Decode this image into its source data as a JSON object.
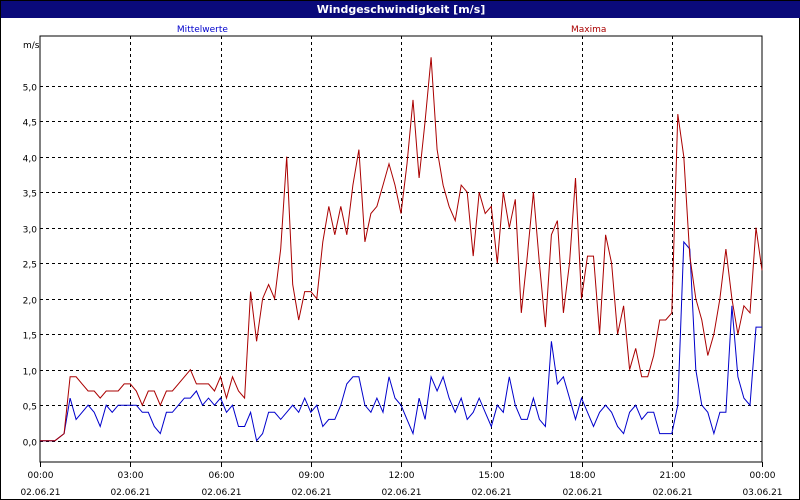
{
  "window": {
    "title": "Windgeschwindigkeit [m/s]"
  },
  "chart_data": {
    "type": "line",
    "title": "Windgeschwindigkeit [m/s]",
    "ylabel": "m/s",
    "ylim": [
      -0.3,
      5.7
    ],
    "yticks": [
      "0,0",
      "0,5",
      "1,0",
      "1,5",
      "2,0",
      "2,5",
      "3,0",
      "3,5",
      "4,0",
      "4,5",
      "5,0"
    ],
    "ytick_values": [
      0,
      0.5,
      1,
      1.5,
      2,
      2.5,
      3,
      3.5,
      4,
      4.5,
      5
    ],
    "xlim": [
      0,
      24
    ],
    "xticks": [
      {
        "h": 0,
        "time": "00:00",
        "date": "02.06.21"
      },
      {
        "h": 3,
        "time": "03:00",
        "date": "02.06.21"
      },
      {
        "h": 6,
        "time": "06:00",
        "date": "02.06.21"
      },
      {
        "h": 9,
        "time": "09:00",
        "date": "02.06.21"
      },
      {
        "h": 12,
        "time": "12:00",
        "date": "02.06.21"
      },
      {
        "h": 15,
        "time": "15:00",
        "date": "02.06.21"
      },
      {
        "h": 18,
        "time": "18:00",
        "date": "02.06.21"
      },
      {
        "h": 21,
        "time": "21:00",
        "date": "02.06.21"
      },
      {
        "h": 24,
        "time": "00:00",
        "date": "03.06.21"
      }
    ],
    "grid": true,
    "series": [
      {
        "name": "Mittelwerte",
        "color": "#0000cc",
        "label_position": "left",
        "x": [
          0,
          0.5,
          0.8,
          1.0,
          1.2,
          1.4,
          1.6,
          1.8,
          2.0,
          2.2,
          2.4,
          2.6,
          2.8,
          3.0,
          3.2,
          3.4,
          3.6,
          3.8,
          4.0,
          4.2,
          4.4,
          4.6,
          4.8,
          5.0,
          5.2,
          5.4,
          5.6,
          5.8,
          6.0,
          6.2,
          6.4,
          6.6,
          6.8,
          7.0,
          7.2,
          7.4,
          7.6,
          7.8,
          8.0,
          8.2,
          8.4,
          8.6,
          8.8,
          9.0,
          9.2,
          9.4,
          9.6,
          9.8,
          10.0,
          10.2,
          10.4,
          10.6,
          10.8,
          11.0,
          11.2,
          11.4,
          11.6,
          11.8,
          12.0,
          12.2,
          12.4,
          12.6,
          12.8,
          13.0,
          13.2,
          13.4,
          13.6,
          13.8,
          14.0,
          14.2,
          14.4,
          14.6,
          14.8,
          15.0,
          15.2,
          15.4,
          15.6,
          15.8,
          16.0,
          16.2,
          16.4,
          16.6,
          16.8,
          17.0,
          17.2,
          17.4,
          17.6,
          17.8,
          18.0,
          18.2,
          18.4,
          18.6,
          18.8,
          19.0,
          19.2,
          19.4,
          19.6,
          19.8,
          20.0,
          20.2,
          20.4,
          20.6,
          20.8,
          21.0,
          21.2,
          21.4,
          21.6,
          21.8,
          22.0,
          22.2,
          22.4,
          22.6,
          22.8,
          23.0,
          23.2,
          23.4,
          23.6,
          23.8,
          24.0
        ],
        "y": [
          0,
          0,
          0.1,
          0.6,
          0.3,
          0.4,
          0.5,
          0.4,
          0.2,
          0.5,
          0.4,
          0.5,
          0.5,
          0.5,
          0.5,
          0.4,
          0.4,
          0.2,
          0.1,
          0.4,
          0.4,
          0.5,
          0.6,
          0.6,
          0.7,
          0.5,
          0.6,
          0.5,
          0.6,
          0.4,
          0.5,
          0.2,
          0.2,
          0.4,
          0,
          0.1,
          0.4,
          0.4,
          0.3,
          0.4,
          0.5,
          0.4,
          0.6,
          0.4,
          0.5,
          0.2,
          0.3,
          0.3,
          0.5,
          0.8,
          0.9,
          0.9,
          0.5,
          0.4,
          0.6,
          0.4,
          0.9,
          0.6,
          0.5,
          0.3,
          0.1,
          0.6,
          0.3,
          0.9,
          0.7,
          0.9,
          0.6,
          0.4,
          0.6,
          0.3,
          0.4,
          0.6,
          0.4,
          0.2,
          0.5,
          0.4,
          0.9,
          0.5,
          0.3,
          0.3,
          0.6,
          0.3,
          0.2,
          1.4,
          0.8,
          0.9,
          0.6,
          0.3,
          0.6,
          0.4,
          0.2,
          0.4,
          0.5,
          0.4,
          0.2,
          0.1,
          0.4,
          0.5,
          0.3,
          0.4,
          0.4,
          0.1,
          0.1,
          0.1,
          0.5,
          2.8,
          2.7,
          1.0,
          0.5,
          0.4,
          0.1,
          0.4,
          0.4,
          1.9,
          0.9,
          0.6,
          0.5,
          1.6,
          1.6
        ]
      },
      {
        "name": "Maxima",
        "color": "#aa0000",
        "label_position": "right",
        "x": [
          0,
          0.5,
          0.8,
          1.0,
          1.2,
          1.4,
          1.6,
          1.8,
          2.0,
          2.2,
          2.4,
          2.6,
          2.8,
          3.0,
          3.2,
          3.4,
          3.6,
          3.8,
          4.0,
          4.2,
          4.4,
          4.6,
          4.8,
          5.0,
          5.2,
          5.4,
          5.6,
          5.8,
          6.0,
          6.2,
          6.4,
          6.6,
          6.8,
          7.0,
          7.2,
          7.4,
          7.6,
          7.8,
          8.0,
          8.2,
          8.4,
          8.6,
          8.8,
          9.0,
          9.2,
          9.4,
          9.6,
          9.8,
          10.0,
          10.2,
          10.4,
          10.6,
          10.8,
          11.0,
          11.2,
          11.4,
          11.6,
          11.8,
          12.0,
          12.2,
          12.4,
          12.6,
          12.8,
          13.0,
          13.2,
          13.4,
          13.6,
          13.8,
          14.0,
          14.2,
          14.4,
          14.6,
          14.8,
          15.0,
          15.2,
          15.4,
          15.6,
          15.8,
          16.0,
          16.2,
          16.4,
          16.6,
          16.8,
          17.0,
          17.2,
          17.4,
          17.6,
          17.8,
          18.0,
          18.2,
          18.4,
          18.6,
          18.8,
          19.0,
          19.2,
          19.4,
          19.6,
          19.8,
          20.0,
          20.2,
          20.4,
          20.6,
          20.8,
          21.0,
          21.2,
          21.4,
          21.6,
          21.8,
          22.0,
          22.2,
          22.4,
          22.6,
          22.8,
          23.0,
          23.2,
          23.4,
          23.6,
          23.8,
          24.0
        ],
        "y": [
          0,
          0,
          0.1,
          0.9,
          0.9,
          0.8,
          0.7,
          0.7,
          0.6,
          0.7,
          0.7,
          0.7,
          0.8,
          0.8,
          0.7,
          0.5,
          0.7,
          0.7,
          0.5,
          0.7,
          0.7,
          0.8,
          0.9,
          1.0,
          0.8,
          0.8,
          0.8,
          0.7,
          0.9,
          0.6,
          0.9,
          0.7,
          0.6,
          2.1,
          1.4,
          2.0,
          2.2,
          2.0,
          2.7,
          4.0,
          2.2,
          1.7,
          2.1,
          2.1,
          2.0,
          2.8,
          3.3,
          2.9,
          3.3,
          2.9,
          3.6,
          4.1,
          2.8,
          3.2,
          3.3,
          3.6,
          3.9,
          3.6,
          3.2,
          3.9,
          4.8,
          3.7,
          4.5,
          5.4,
          4.1,
          3.6,
          3.3,
          3.1,
          3.6,
          3.5,
          2.6,
          3.5,
          3.2,
          3.3,
          2.5,
          3.5,
          3.0,
          3.4,
          1.8,
          2.6,
          3.5,
          2.5,
          1.6,
          2.9,
          3.1,
          1.8,
          2.5,
          3.7,
          2.0,
          2.6,
          2.6,
          1.5,
          2.9,
          2.5,
          1.5,
          1.9,
          1.0,
          1.3,
          0.9,
          0.9,
          1.2,
          1.7,
          1.7,
          1.8,
          4.6,
          4.0,
          2.6,
          2.0,
          1.7,
          1.2,
          1.5,
          2.0,
          2.7,
          2.0,
          1.5,
          1.9,
          1.8,
          3.0,
          2.4
        ]
      }
    ]
  }
}
